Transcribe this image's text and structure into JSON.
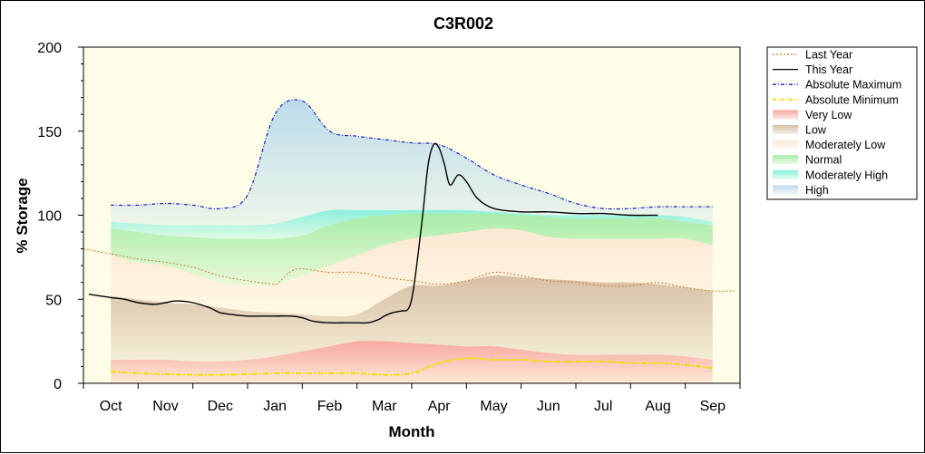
{
  "chart_data": {
    "type": "area",
    "title": "C3R002",
    "xlabel": "Month",
    "ylabel": "% Storage",
    "ylim": [
      0,
      200
    ],
    "yticks": [
      0,
      50,
      100,
      150,
      200
    ],
    "categories": [
      "Oct",
      "Nov",
      "Dec",
      "Jan",
      "Feb",
      "Mar",
      "Apr",
      "May",
      "Jun",
      "Jul",
      "Aug",
      "Sep"
    ],
    "xlim": [
      -0.5,
      11.5
    ],
    "grid": false,
    "legend_position": "right",
    "colors": {
      "plot_bg": "#fefee8",
      "last_year": "#c87a3a",
      "this_year": "#000000",
      "abs_max": "#1a1acc",
      "abs_min": "#f0e000",
      "very_low": "#f6a8a0",
      "low": "#d7bfa4",
      "moderately_low": "#fde8d4",
      "normal": "#a8eca8",
      "moderately_high": "#8af0dc",
      "high": "#bcdcec"
    },
    "legend": [
      {
        "key": "last_year",
        "label": "Last Year",
        "style": "dotted-line"
      },
      {
        "key": "this_year",
        "label": "This Year",
        "style": "line"
      },
      {
        "key": "abs_max",
        "label": "Absolute Maximum",
        "style": "dash-dot-line"
      },
      {
        "key": "abs_min",
        "label": "Absolute Minimum",
        "style": "dash-dot-line"
      },
      {
        "key": "very_low",
        "label": "Very Low",
        "style": "band"
      },
      {
        "key": "low",
        "label": "Low",
        "style": "band"
      },
      {
        "key": "moderately_low",
        "label": "Moderately Low",
        "style": "band"
      },
      {
        "key": "normal",
        "label": "Normal",
        "style": "band"
      },
      {
        "key": "moderately_high",
        "label": "Moderately High",
        "style": "band"
      },
      {
        "key": "high",
        "label": "High",
        "style": "band"
      }
    ],
    "band_x": [
      0,
      0.5,
      1,
      1.5,
      2,
      2.5,
      3,
      3.5,
      4,
      4.5,
      5,
      5.5,
      6,
      6.5,
      7,
      7.5,
      8,
      8.5,
      9,
      9.5,
      10,
      10.5,
      11
    ],
    "bands": {
      "abs_min": [
        7,
        6,
        5.5,
        5,
        5,
        5.5,
        6,
        6,
        6,
        6,
        5,
        6,
        12,
        15,
        14,
        14,
        13,
        13,
        13,
        12,
        12,
        11,
        9
      ],
      "very_low": [
        14,
        14,
        14,
        13,
        13,
        14,
        16,
        19,
        22,
        25,
        25,
        24,
        23,
        22,
        22,
        20,
        18,
        17,
        17,
        17,
        17,
        16,
        14
      ],
      "low": [
        52,
        50,
        48,
        47,
        45,
        43,
        42,
        41,
        40,
        41,
        50,
        58,
        58,
        61,
        64,
        63,
        62,
        61,
        60,
        60,
        59,
        57,
        55
      ],
      "mod_low": [
        76,
        72,
        70,
        65,
        60,
        58,
        59,
        64,
        70,
        76,
        82,
        86,
        88,
        90,
        92,
        91,
        87,
        86,
        86,
        86,
        86,
        86,
        82
      ],
      "normal": [
        92,
        90,
        88,
        87,
        86,
        86,
        86,
        88,
        94,
        98,
        100,
        101,
        101,
        101,
        101,
        100,
        99,
        98,
        98,
        98,
        98,
        96,
        94
      ],
      "mod_high": [
        96,
        95,
        94,
        94,
        94,
        94,
        95,
        99,
        103,
        103,
        103,
        103,
        103,
        103,
        102,
        101,
        100,
        100,
        100,
        100,
        100,
        99,
        96
      ],
      "abs_max": [
        106,
        106,
        107,
        106,
        104,
        112,
        160,
        168,
        150,
        147,
        145,
        143,
        142,
        134,
        124,
        118,
        113,
        107,
        104,
        104,
        105,
        105,
        105
      ]
    },
    "series": [
      {
        "key": "last_year",
        "name": "Last Year",
        "x": [
          -0.5,
          0,
          0.5,
          1,
          1.5,
          2,
          2.5,
          3,
          3.1,
          3.4,
          4,
          4.5,
          5,
          5.5,
          6,
          6.5,
          7,
          7.5,
          8,
          8.5,
          9,
          9.5,
          10,
          10.5,
          11,
          11.4
        ],
        "values": [
          80,
          77,
          74,
          72,
          69,
          64,
          61,
          59,
          61,
          68,
          66,
          66,
          63,
          61,
          59,
          61,
          66,
          64,
          61,
          60,
          58,
          58,
          60,
          57,
          55,
          55
        ]
      },
      {
        "key": "this_year",
        "name": "This Year",
        "x": [
          -0.4,
          0,
          0.25,
          0.5,
          0.8,
          1,
          1.2,
          1.5,
          1.8,
          2,
          2.2,
          2.5,
          2.8,
          3,
          3.3,
          3.5,
          3.7,
          4,
          4.3,
          4.5,
          4.7,
          4.9,
          5,
          5.15,
          5.3,
          5.45,
          5.55,
          5.7,
          5.8,
          5.9,
          6,
          6.1,
          6.2,
          6.35,
          6.5,
          6.7,
          7,
          7.5,
          8,
          8.5,
          9,
          9.5,
          10
        ],
        "values": [
          53,
          51,
          50,
          48,
          47,
          48,
          49,
          48,
          45,
          42,
          41,
          40,
          40,
          40,
          40,
          39,
          37,
          36,
          36,
          36,
          36,
          38,
          40,
          42,
          43,
          45,
          60,
          100,
          130,
          142,
          140,
          130,
          118,
          124,
          120,
          110,
          104,
          102,
          102,
          101,
          101,
          100,
          100
        ]
      }
    ]
  }
}
